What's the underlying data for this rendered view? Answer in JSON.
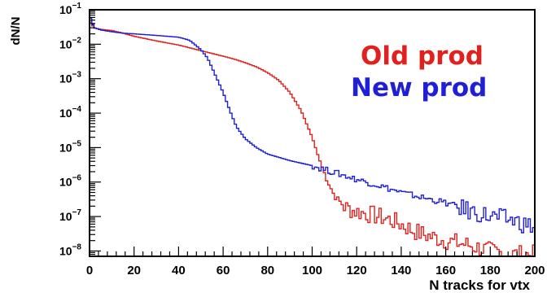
{
  "chart_data": {
    "type": "line",
    "step": true,
    "xlabel": "N tracks for vtx",
    "ylabel": "dN/N",
    "xlim": [
      0,
      200
    ],
    "ylim": [
      7e-09,
      0.1
    ],
    "yscale": "log",
    "grid": false,
    "legend_position": "top-right",
    "x_ticks": [
      "0",
      "20",
      "40",
      "60",
      "80",
      "100",
      "120",
      "140",
      "160",
      "180",
      "200"
    ],
    "y_ticks": [
      {
        "base": "10",
        "exp": "−1",
        "value": 0.1
      },
      {
        "base": "10",
        "exp": "−2",
        "value": 0.01
      },
      {
        "base": "10",
        "exp": "−3",
        "value": 0.001
      },
      {
        "base": "10",
        "exp": "−4",
        "value": 0.0001
      },
      {
        "base": "10",
        "exp": "−5",
        "value": 1e-05
      },
      {
        "base": "10",
        "exp": "−6",
        "value": 1e-06
      },
      {
        "base": "10",
        "exp": "−7",
        "value": 1e-07
      },
      {
        "base": "10",
        "exp": "−8",
        "value": 1e-08
      }
    ],
    "series": [
      {
        "name": "Old prod",
        "color": "#e0211d",
        "x": [
          0,
          2,
          5,
          10,
          15,
          20,
          30,
          40,
          50,
          60,
          65,
          70,
          75,
          80,
          85,
          90,
          95,
          100,
          103,
          106,
          110,
          115,
          120,
          125,
          130,
          135,
          140,
          145,
          150,
          160,
          170,
          180,
          190,
          199
        ],
        "y": [
          0.05,
          0.03,
          0.027,
          0.025,
          0.021,
          0.017,
          0.0125,
          0.0095,
          0.0065,
          0.0045,
          0.0037,
          0.0029,
          0.0022,
          0.0015,
          0.0009,
          0.0004,
          0.00012,
          2e-05,
          5e-06,
          1.5e-06,
          4e-07,
          1.8e-07,
          1.4e-07,
          1.2e-07,
          1e-07,
          8e-08,
          6e-08,
          4e-08,
          3e-08,
          2e-08,
          1.5e-08,
          1e-08,
          8e-09,
          8e-09
        ]
      },
      {
        "name": "New prod",
        "color": "#1f1fd6",
        "x": [
          0,
          2,
          5,
          10,
          15,
          20,
          30,
          40,
          45,
          50,
          53,
          56,
          60,
          63,
          66,
          70,
          75,
          80,
          90,
          100,
          110,
          120,
          130,
          140,
          150,
          160,
          170,
          180,
          190,
          199
        ],
        "y": [
          0.07,
          0.03,
          0.026,
          0.023,
          0.021,
          0.02,
          0.018,
          0.016,
          0.013,
          0.007,
          0.004,
          0.0015,
          0.0004,
          0.00012,
          4e-05,
          1.8e-05,
          1e-05,
          6.5e-06,
          4.2e-06,
          3e-06,
          1.9e-06,
          1.2e-06,
          8e-07,
          5e-07,
          3.5e-07,
          2.5e-07,
          1.5e-07,
          1e-07,
          8e-08,
          5e-08
        ]
      }
    ]
  }
}
